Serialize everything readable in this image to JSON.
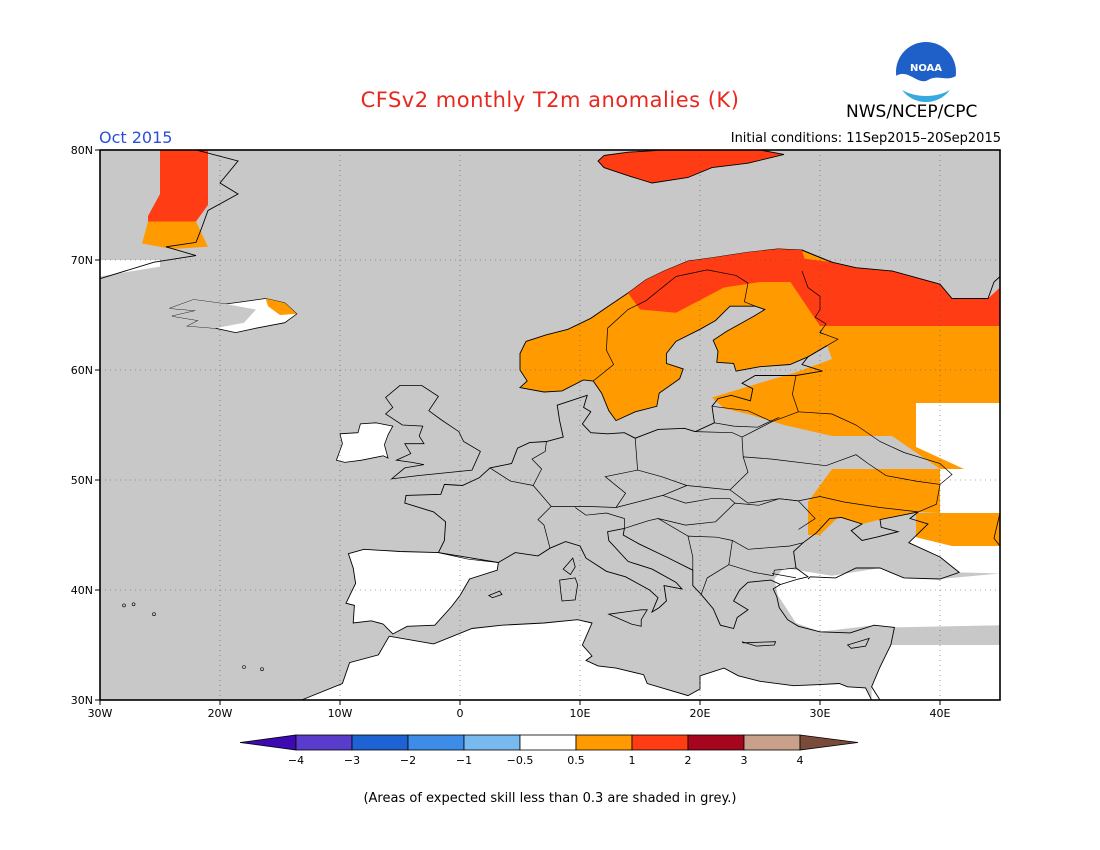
{
  "title": "CFSv2 monthly T2m anomalies (K)",
  "agency": "NWS/NCEP/CPC",
  "logo_text": "NOAA",
  "valid_month": "Oct 2015",
  "initial_conditions": "Initial conditions: 11Sep2015–20Sep2015",
  "footer_note": "(Areas of expected skill less than 0.3 are shaded in grey.)",
  "map": {
    "lon_range": [
      -30,
      45
    ],
    "lat_range": [
      30,
      80
    ],
    "lat_ticks": [
      "30N",
      "40N",
      "50N",
      "60N",
      "70N",
      "80N"
    ],
    "lon_ticks": [
      "30W",
      "20W",
      "10W",
      "0",
      "10E",
      "20E",
      "30E",
      "40E"
    ],
    "low_skill_color": "#c8c8c8",
    "regions": [
      {
        "name": "Greenland",
        "class": "1-2",
        "lon": [
          -25,
          -21
        ],
        "lat": [
          71,
          80
        ]
      },
      {
        "name": "Svalbard",
        "class": "1-2",
        "lon": [
          12,
          22
        ],
        "lat": [
          77,
          80
        ]
      },
      {
        "name": "Northern Norway",
        "class": "1-2",
        "lon": [
          15,
          28
        ],
        "lat": [
          66,
          71
        ]
      },
      {
        "name": "Northwest Russia",
        "class": "1-2",
        "lon": [
          25,
          45
        ],
        "lat": [
          64,
          69
        ]
      },
      {
        "name": "Scandinavia and Western Russia",
        "class": "0.5-1",
        "lon": [
          8,
          45
        ],
        "lat": [
          56,
          66
        ]
      },
      {
        "name": "Eastern Ukraine and Southern Russia",
        "class": "0.5-1",
        "lon": [
          30,
          40
        ],
        "lat": [
          44,
          51
        ]
      },
      {
        "name": "Iberian Peninsula",
        "class": "-0.5-0.5",
        "lon": [
          -10,
          4
        ],
        "lat": [
          36,
          44
        ]
      },
      {
        "name": "Northwest Africa",
        "class": "-0.5-0.5",
        "lon": [
          -13,
          10
        ],
        "lat": [
          30,
          36
        ]
      }
    ]
  },
  "colorbar": {
    "labels": [
      "−4",
      "−3",
      "−2",
      "−1",
      "−0.5",
      "0.5",
      "1",
      "2",
      "3",
      "4"
    ],
    "colors": [
      "#3c0ab0",
      "#5a3ccc",
      "#1f62d4",
      "#3c8ce8",
      "#78b9ef",
      "#ffffff",
      "#ff9b00",
      "#ff3c14",
      "#a6051e",
      "#c9a08a",
      "#7a4a3a"
    ]
  }
}
